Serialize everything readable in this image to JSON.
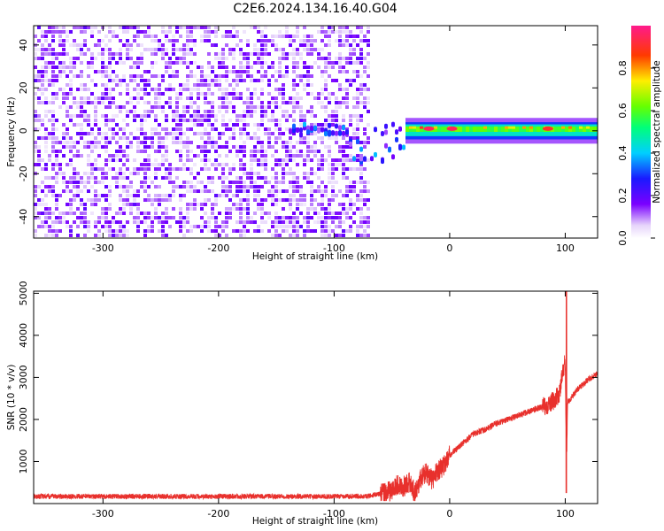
{
  "title": "C2E6.2024.134.16.40.G04",
  "chart_data": [
    {
      "type": "heatmap",
      "xlabel": "Height of straight line (km)",
      "ylabel": "Frequency (Hz)",
      "xlim": [
        -360,
        128
      ],
      "ylim": [
        -50,
        49
      ],
      "xticks": [
        -300,
        -200,
        -100,
        0,
        100
      ],
      "xtick_labels": [
        "-300",
        "-200",
        "-100",
        "0",
        "100"
      ],
      "yticks": [
        -40,
        -20,
        0,
        20,
        40
      ],
      "ytick_labels": [
        "-40",
        "-20",
        "0",
        "20",
        "40"
      ],
      "grid": false,
      "colorbar": {
        "label": "Normalized spectral amplitude",
        "range": [
          0.0,
          1.0
        ],
        "ticks": [
          0.0,
          0.2,
          0.4,
          0.6,
          0.8
        ],
        "tick_labels": [
          "0.0",
          "0.2",
          "0.4",
          "0.6",
          "0.8"
        ],
        "colormap": "rainbow (white-purple-blue-cyan-green-yellow-red-pink)"
      },
      "regions": [
        {
          "x_range": [
            -360,
            -70
          ],
          "freq_range": [
            -50,
            49
          ],
          "amplitude": [
            0.0,
            0.1
          ],
          "pattern": "broadband speckle noise"
        },
        {
          "x_range": [
            -140,
            -40
          ],
          "freq_range": [
            -15,
            5
          ],
          "amplitude": [
            0.1,
            0.4
          ],
          "pattern": "scattered blobs near 0 Hz"
        },
        {
          "x_range": [
            -40,
            128
          ],
          "freq_range": [
            -3,
            4
          ],
          "amplitude": [
            0.3,
            1.0
          ],
          "pattern": "narrow carrier line near 0 Hz"
        }
      ],
      "peaks": [
        {
          "x": -18,
          "freq": 1,
          "amplitude": 0.95
        },
        {
          "x": 2,
          "freq": 1,
          "amplitude": 0.95
        },
        {
          "x": 85,
          "freq": 1,
          "amplitude": 0.9
        }
      ]
    },
    {
      "type": "line",
      "xlabel": "Height of straight line (km)",
      "ylabel": "SNR (10 * v/v)",
      "xlim": [
        -360,
        128
      ],
      "ylim": [
        0,
        5050
      ],
      "xticks": [
        -300,
        -200,
        -100,
        0,
        100
      ],
      "xtick_labels": [
        "-300",
        "-200",
        "-100",
        "0",
        "100"
      ],
      "yticks": [
        1000,
        2000,
        3000,
        4000,
        5000
      ],
      "ytick_labels": [
        "1000",
        "2000",
        "3000",
        "4000",
        "5000"
      ],
      "grid": false,
      "line_color": "#e8302c",
      "x": [
        -360,
        -300,
        -200,
        -100,
        -70,
        -50,
        -45,
        -40,
        -35,
        -30,
        -25,
        -20,
        -15,
        -10,
        -5,
        0,
        10,
        20,
        30,
        40,
        50,
        60,
        70,
        80,
        85,
        90,
        95,
        97,
        100,
        101,
        102,
        105,
        110,
        120,
        128
      ],
      "y": [
        170,
        170,
        170,
        170,
        180,
        300,
        450,
        400,
        520,
        250,
        600,
        750,
        550,
        800,
        900,
        1150,
        1400,
        1650,
        1750,
        1900,
        2000,
        2100,
        2200,
        2300,
        2350,
        2450,
        2600,
        3000,
        3400,
        500,
        2400,
        2500,
        2700,
        2950,
        3100
      ],
      "noise_band": [
        {
          "x_range": [
            -360,
            -60
          ],
          "spread": 120
        },
        {
          "x_range": [
            -60,
            0
          ],
          "spread": 500
        },
        {
          "x_range": [
            0,
            80
          ],
          "spread": 150
        },
        {
          "x_range": [
            80,
            100
          ],
          "spread": 450
        },
        {
          "x_range": [
            100,
            128
          ],
          "spread": 150
        }
      ],
      "spike": {
        "x": 101,
        "max": 5050,
        "min": 250
      }
    }
  ]
}
